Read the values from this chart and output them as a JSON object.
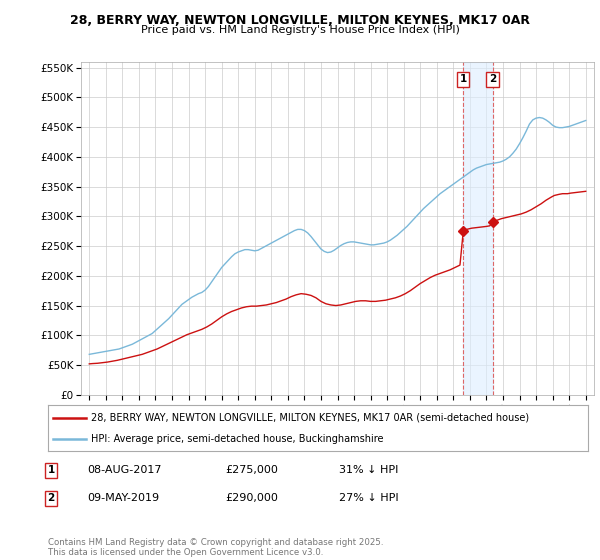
{
  "title_line1": "28, BERRY WAY, NEWTON LONGVILLE, MILTON KEYNES, MK17 0AR",
  "title_line2": "Price paid vs. HM Land Registry's House Price Index (HPI)",
  "background_color": "#ffffff",
  "plot_bg_color": "#ffffff",
  "grid_color": "#cccccc",
  "hpi_color": "#7ab8d9",
  "price_color": "#cc1111",
  "dashed_color": "#dd6666",
  "shade_color": "#ddeeff",
  "marker_color": "#cc1111",
  "ylim": [
    0,
    560000
  ],
  "yticks": [
    0,
    50000,
    100000,
    150000,
    200000,
    250000,
    300000,
    350000,
    400000,
    450000,
    500000,
    550000
  ],
  "ytick_labels": [
    "£0",
    "£50K",
    "£100K",
    "£150K",
    "£200K",
    "£250K",
    "£300K",
    "£350K",
    "£400K",
    "£450K",
    "£500K",
    "£550K"
  ],
  "transaction1": {
    "date": "08-AUG-2017",
    "price": 275000,
    "hpi_pct": "31%",
    "label": "1"
  },
  "transaction2": {
    "date": "09-MAY-2019",
    "price": 290000,
    "hpi_pct": "27%",
    "label": "2"
  },
  "transaction1_x": 2017.6,
  "transaction2_x": 2019.37,
  "legend_line1": "28, BERRY WAY, NEWTON LONGVILLE, MILTON KEYNES, MK17 0AR (semi-detached house)",
  "legend_line2": "HPI: Average price, semi-detached house, Buckinghamshire",
  "footer": "Contains HM Land Registry data © Crown copyright and database right 2025.\nThis data is licensed under the Open Government Licence v3.0.",
  "hpi_data_x": [
    1995.0,
    1995.2,
    1995.4,
    1995.6,
    1995.8,
    1996.0,
    1996.2,
    1996.4,
    1996.6,
    1996.8,
    1997.0,
    1997.2,
    1997.4,
    1997.6,
    1997.8,
    1998.0,
    1998.2,
    1998.4,
    1998.6,
    1998.8,
    1999.0,
    1999.2,
    1999.4,
    1999.6,
    1999.8,
    2000.0,
    2000.2,
    2000.4,
    2000.6,
    2000.8,
    2001.0,
    2001.2,
    2001.4,
    2001.6,
    2001.8,
    2002.0,
    2002.2,
    2002.4,
    2002.6,
    2002.8,
    2003.0,
    2003.2,
    2003.4,
    2003.6,
    2003.8,
    2004.0,
    2004.2,
    2004.4,
    2004.6,
    2004.8,
    2005.0,
    2005.2,
    2005.4,
    2005.6,
    2005.8,
    2006.0,
    2006.2,
    2006.4,
    2006.6,
    2006.8,
    2007.0,
    2007.2,
    2007.4,
    2007.6,
    2007.8,
    2008.0,
    2008.2,
    2008.4,
    2008.6,
    2008.8,
    2009.0,
    2009.2,
    2009.4,
    2009.6,
    2009.8,
    2010.0,
    2010.2,
    2010.4,
    2010.6,
    2010.8,
    2011.0,
    2011.2,
    2011.4,
    2011.6,
    2011.8,
    2012.0,
    2012.2,
    2012.4,
    2012.6,
    2012.8,
    2013.0,
    2013.2,
    2013.4,
    2013.6,
    2013.8,
    2014.0,
    2014.2,
    2014.4,
    2014.6,
    2014.8,
    2015.0,
    2015.2,
    2015.4,
    2015.6,
    2015.8,
    2016.0,
    2016.2,
    2016.4,
    2016.6,
    2016.8,
    2017.0,
    2017.2,
    2017.4,
    2017.6,
    2017.8,
    2018.0,
    2018.2,
    2018.4,
    2018.6,
    2018.8,
    2019.0,
    2019.2,
    2019.4,
    2019.6,
    2019.8,
    2020.0,
    2020.2,
    2020.4,
    2020.6,
    2020.8,
    2021.0,
    2021.2,
    2021.4,
    2021.6,
    2021.8,
    2022.0,
    2022.2,
    2022.4,
    2022.6,
    2022.8,
    2023.0,
    2023.2,
    2023.4,
    2023.6,
    2023.8,
    2024.0,
    2024.2,
    2024.4,
    2024.6,
    2024.8,
    2025.0
  ],
  "hpi_data_y": [
    68000,
    69000,
    70000,
    71000,
    72000,
    73000,
    74000,
    75000,
    76000,
    77000,
    79000,
    81000,
    83000,
    85000,
    88000,
    91000,
    94000,
    97000,
    100000,
    103000,
    108000,
    113000,
    118000,
    123000,
    128000,
    134000,
    140000,
    146000,
    152000,
    156000,
    160000,
    164000,
    167000,
    170000,
    172000,
    176000,
    182000,
    190000,
    198000,
    206000,
    214000,
    220000,
    226000,
    232000,
    237000,
    240000,
    242000,
    244000,
    244000,
    243000,
    242000,
    243000,
    246000,
    249000,
    252000,
    255000,
    258000,
    261000,
    264000,
    267000,
    270000,
    273000,
    276000,
    278000,
    278000,
    276000,
    272000,
    266000,
    259000,
    252000,
    245000,
    241000,
    239000,
    240000,
    243000,
    247000,
    251000,
    254000,
    256000,
    257000,
    257000,
    256000,
    255000,
    254000,
    253000,
    252000,
    252000,
    253000,
    254000,
    255000,
    257000,
    260000,
    264000,
    268000,
    273000,
    278000,
    283000,
    289000,
    295000,
    301000,
    307000,
    313000,
    318000,
    323000,
    328000,
    333000,
    338000,
    342000,
    346000,
    350000,
    354000,
    358000,
    362000,
    366000,
    370000,
    374000,
    378000,
    381000,
    383000,
    385000,
    387000,
    388000,
    389000,
    390000,
    391000,
    393000,
    396000,
    400000,
    406000,
    413000,
    422000,
    432000,
    443000,
    455000,
    462000,
    465000,
    466000,
    465000,
    462000,
    458000,
    453000,
    450000,
    449000,
    449000,
    450000,
    451000,
    453000,
    455000,
    457000,
    459000,
    461000
  ],
  "price_data_x": [
    1995.0,
    1995.2,
    1995.5,
    1995.8,
    1996.1,
    1996.4,
    1996.7,
    1997.0,
    1997.3,
    1997.6,
    1997.9,
    1998.2,
    1998.5,
    1998.8,
    1999.1,
    1999.4,
    1999.7,
    2000.0,
    2000.3,
    2000.6,
    2000.9,
    2001.2,
    2001.5,
    2001.8,
    2002.1,
    2002.4,
    2002.7,
    2003.0,
    2003.3,
    2003.6,
    2003.9,
    2004.2,
    2004.5,
    2004.8,
    2005.1,
    2005.4,
    2005.7,
    2006.0,
    2006.3,
    2006.6,
    2006.9,
    2007.2,
    2007.5,
    2007.8,
    2008.1,
    2008.4,
    2008.7,
    2009.0,
    2009.3,
    2009.6,
    2009.9,
    2010.2,
    2010.5,
    2010.8,
    2011.1,
    2011.4,
    2011.7,
    2012.0,
    2012.3,
    2012.6,
    2012.9,
    2013.2,
    2013.5,
    2013.8,
    2014.1,
    2014.4,
    2014.7,
    2015.0,
    2015.3,
    2015.6,
    2015.9,
    2016.2,
    2016.5,
    2016.8,
    2017.1,
    2017.4,
    2017.6,
    2017.8,
    2018.1,
    2018.4,
    2018.7,
    2019.0,
    2019.2,
    2019.37,
    2019.6,
    2019.9,
    2020.2,
    2020.5,
    2020.8,
    2021.1,
    2021.4,
    2021.7,
    2022.0,
    2022.3,
    2022.6,
    2022.9,
    2023.1,
    2023.4,
    2023.6,
    2023.9,
    2024.1,
    2024.4,
    2024.7,
    2025.0
  ],
  "price_data_y": [
    52000,
    52500,
    53000,
    54000,
    55000,
    56500,
    58000,
    60000,
    62000,
    64000,
    66000,
    68000,
    71000,
    74000,
    77000,
    81000,
    85000,
    89000,
    93000,
    97000,
    101000,
    104000,
    107000,
    110000,
    114000,
    119000,
    125000,
    131000,
    136000,
    140000,
    143000,
    146000,
    148000,
    149000,
    149000,
    150000,
    151000,
    153000,
    155000,
    158000,
    161000,
    165000,
    168000,
    170000,
    169000,
    167000,
    163000,
    157000,
    153000,
    151000,
    150000,
    151000,
    153000,
    155000,
    157000,
    158000,
    158000,
    157000,
    157000,
    158000,
    159000,
    161000,
    163000,
    166000,
    170000,
    175000,
    181000,
    187000,
    192000,
    197000,
    201000,
    204000,
    207000,
    210000,
    214000,
    218000,
    275000,
    278000,
    280000,
    281000,
    282000,
    283000,
    284000,
    290000,
    293000,
    296000,
    298000,
    300000,
    302000,
    304000,
    307000,
    311000,
    316000,
    321000,
    327000,
    332000,
    335000,
    337000,
    338000,
    338000,
    339000,
    340000,
    341000,
    342000
  ]
}
